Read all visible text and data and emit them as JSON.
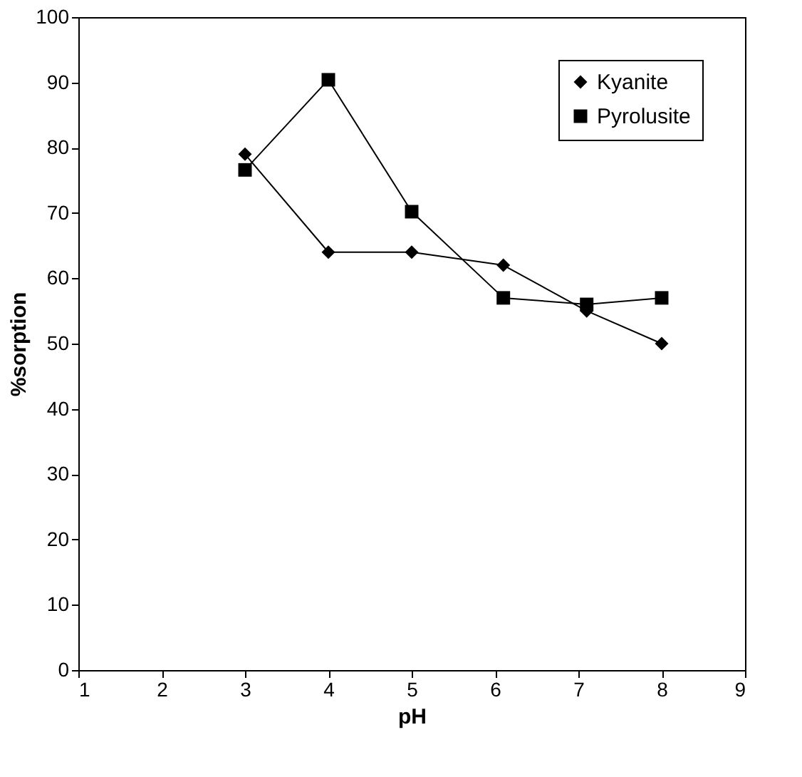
{
  "chart_data": {
    "type": "line",
    "xlabel": "pH",
    "ylabel": "%sorption",
    "xlim": [
      1,
      9
    ],
    "xticks": [
      1,
      2,
      3,
      4,
      5,
      6,
      7,
      8,
      9
    ],
    "ylim": [
      0,
      100
    ],
    "yticks": [
      0,
      10,
      20,
      30,
      40,
      50,
      60,
      70,
      80,
      90,
      100
    ],
    "grid": false,
    "legend": "top right",
    "line_style": "solid",
    "series": [
      {
        "name": "Kyanite",
        "color": "#000000",
        "marker": "diamond",
        "x": [
          3,
          4,
          5,
          6.1,
          7.1,
          8
        ],
        "values": [
          79,
          64,
          64,
          62,
          55,
          50
        ]
      },
      {
        "name": "Pyrolusite",
        "color": "#000000",
        "marker": "square",
        "x": [
          3,
          4,
          5,
          6.1,
          7.1,
          8
        ],
        "values": [
          76.6,
          90.4,
          70.2,
          57,
          56,
          57
        ]
      }
    ]
  }
}
